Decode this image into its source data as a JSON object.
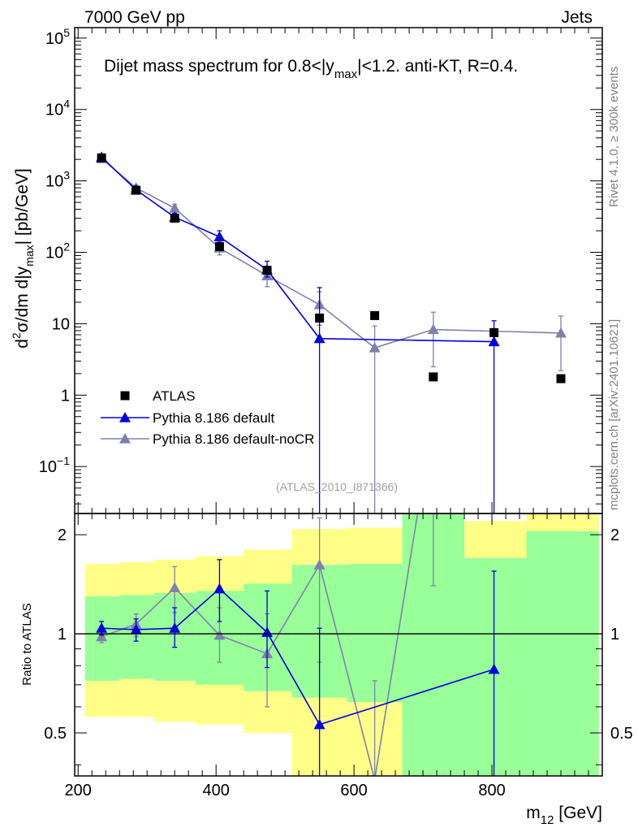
{
  "header": {
    "left_label": "7000 GeV pp",
    "right_label": "Jets"
  },
  "sidebar": {
    "rivet_label": "Rivet 4.1.0, ≥ 300k events",
    "source_label": "mcplots.cern.ch [arXiv:2401.10621]"
  },
  "colors": {
    "atlas": "#000000",
    "pythia_default": "#0000dd",
    "pythia_nocr": "#8080b0",
    "band_inner": "#99ff99",
    "band_outer": "#ffff88"
  },
  "chart_data": [
    {
      "panel": "main",
      "type": "scatter",
      "title": "Dijet mass spectrum for 0.8<|y_max|<1.2.  anti-KT, R=0.4.",
      "title_parts": {
        "pre": "Dijet mass spectrum for 0.8<|y",
        "sub": "max",
        "post": "|<1.2.  anti-KT, R=0.4."
      },
      "ylabel": "d²σ/dm d|y_max| [pb/GeV]",
      "ylabel_parts": {
        "d": "d",
        "sup": "2",
        "mid": "σ/dm d|y",
        "sub": "max",
        "post": "| [pb/GeV]"
      },
      "xlim": [
        195,
        960
      ],
      "ylim": [
        0.022,
        140000
      ],
      "yscale": "log",
      "yticks": [
        {
          "v": 0.1,
          "base": "10",
          "exp": "−1"
        },
        {
          "v": 1,
          "label": "1"
        },
        {
          "v": 10,
          "label": "10"
        },
        {
          "v": 100,
          "base": "10",
          "exp": "2"
        },
        {
          "v": 1000,
          "base": "10",
          "exp": "3"
        },
        {
          "v": 10000,
          "base": "10",
          "exp": "4"
        },
        {
          "v": 100000,
          "base": "10",
          "exp": "5"
        }
      ],
      "analysis_label": "(ATLAS_2010_I871366)",
      "legend": [
        "ATLAS",
        "Pythia 8.186 default",
        "Pythia 8.186 default-noCR"
      ],
      "series": [
        {
          "name": "ATLAS",
          "style": "square",
          "x": [
            234,
            284,
            340,
            405,
            474,
            550,
            630,
            715,
            803,
            900
          ],
          "y": [
            2100,
            740,
            300,
            120,
            56,
            12,
            13,
            1.8,
            7.5,
            1.7
          ]
        },
        {
          "name": "Pythia 8.186 default",
          "style": "triangle",
          "x": [
            234,
            284,
            340,
            405,
            474,
            550,
            803
          ],
          "y": [
            2150,
            750,
            310,
            165,
            57,
            6.2,
            5.6
          ],
          "err_low": [
            1950,
            680,
            270,
            135,
            45,
            0.001,
            0.001
          ],
          "err_high": [
            2350,
            820,
            350,
            200,
            75,
            32,
            11
          ]
        },
        {
          "name": "Pythia 8.186 default-noCR",
          "style": "triangle",
          "x": [
            234,
            284,
            340,
            405,
            474,
            550,
            630,
            715,
            900
          ],
          "y": [
            2050,
            800,
            415,
            115,
            47,
            18.5,
            4.6,
            8.3,
            7.4
          ],
          "err_low": [
            1850,
            730,
            360,
            92,
            33,
            9.5,
            0.001,
            2.5,
            2.2
          ],
          "err_high": [
            2250,
            870,
            470,
            140,
            62,
            28,
            9.3,
            14.5,
            12.8
          ]
        }
      ]
    },
    {
      "panel": "ratio",
      "type": "line",
      "ylabel": "Ratio to ATLAS",
      "xlabel": "m_12 [GeV]",
      "xlabel_parts": {
        "pre": "m",
        "sub": "12",
        "post": " [GeV]"
      },
      "xlim": [
        195,
        960
      ],
      "ylim": [
        0.37,
        2.32
      ],
      "yscale": "log",
      "xticks": [
        200,
        400,
        600,
        800
      ],
      "yticks": [
        {
          "v": 0.5,
          "label": "0.5"
        },
        {
          "v": 1,
          "label": "1"
        },
        {
          "v": 2,
          "label": "2"
        }
      ],
      "bands": {
        "edges": [
          210,
          260,
          310,
          370,
          440,
          510,
          590,
          670,
          760,
          850,
          955
        ],
        "inner_low": [
          0.72,
          0.73,
          0.72,
          0.7,
          0.67,
          0.64,
          0.62,
          0.34,
          0.34,
          0.34
        ],
        "inner_high": [
          1.3,
          1.31,
          1.33,
          1.35,
          1.42,
          1.62,
          1.63,
          2.35,
          1.7,
          2.05
        ],
        "outer_low": [
          0.56,
          0.56,
          0.54,
          0.53,
          0.5,
          0.37,
          0.36,
          0.34,
          0.34,
          0.34
        ],
        "outer_high": [
          1.63,
          1.65,
          1.68,
          1.72,
          1.8,
          2.08,
          2.1,
          2.35,
          2.2,
          2.35
        ]
      },
      "series": [
        {
          "name": "Pythia 8.186 default",
          "x": [
            234,
            284,
            340,
            405,
            474,
            550,
            803
          ],
          "y": [
            1.04,
            1.03,
            1.04,
            1.37,
            1.01,
            0.53,
            0.78
          ],
          "err_low": [
            0.99,
            0.95,
            0.91,
            1.09,
            0.79,
            0.001,
            0.001
          ],
          "err_high": [
            1.09,
            1.11,
            1.2,
            1.68,
            1.35,
            1.04,
            1.55
          ]
        },
        {
          "name": "Pythia 8.186 default-noCR",
          "x": [
            234,
            284,
            340,
            405,
            474,
            550,
            630,
            715
          ],
          "y": [
            0.98,
            1.07,
            1.38,
            0.99,
            0.87,
            1.62,
            0.36,
            4.6
          ],
          "err_low": [
            0.94,
            0.98,
            1.16,
            0.82,
            0.6,
            0.82,
            0.001,
            1.4
          ],
          "err_high": [
            1.02,
            1.15,
            1.6,
            1.2,
            1.15,
            2.25,
            0.72,
            8.1
          ]
        }
      ]
    }
  ]
}
